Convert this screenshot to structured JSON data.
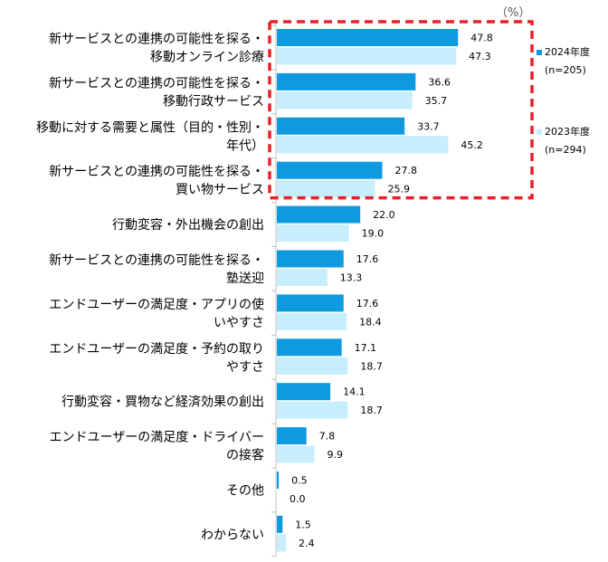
{
  "chart_data": {
    "type": "bar",
    "orientation": "horizontal",
    "unit": "（%）",
    "categories": [
      [
        "新サービスとの連携の可能性を探る・",
        "移動オンライン診療"
      ],
      [
        "新サービスとの連携の可能性を探る・",
        "移動行政サービス"
      ],
      [
        "移動に対する需要と属性（目的・性別・",
        "年代）"
      ],
      [
        "新サービスとの連携の可能性を探る・",
        "買い物サービス"
      ],
      [
        "行動変容・外出機会の創出"
      ],
      [
        "新サービスとの連携の可能性を探る・",
        "塾送迎"
      ],
      [
        "エンドユーザーの満足度・アプリの使",
        "いやすさ"
      ],
      [
        "エンドユーザーの満足度・予約の取り",
        "やすさ"
      ],
      [
        "行動変容・買物など経済効果の創出"
      ],
      [
        "エンドユーザーの満足度・ドライバー",
        "の接客"
      ],
      [
        "その他"
      ],
      [
        "わからない"
      ]
    ],
    "series": [
      {
        "name": "2024年度",
        "sample": "(n=205)",
        "color": "#0F9ADF",
        "values": [
          47.8,
          36.6,
          33.7,
          27.8,
          22.0,
          17.6,
          17.6,
          17.1,
          14.1,
          7.8,
          0.5,
          1.5
        ]
      },
      {
        "name": "2023年度",
        "sample": "(n=294)",
        "color": "#C6EEFD",
        "values": [
          47.3,
          35.7,
          45.2,
          25.9,
          19.0,
          13.3,
          18.4,
          18.7,
          18.7,
          9.9,
          0.0,
          2.4
        ]
      }
    ],
    "xlim": [
      0,
      100
    ],
    "highlight": {
      "first_category": 0,
      "last_category": 3,
      "color": "#E8202A",
      "style": "dashed"
    },
    "legend_position": "right"
  }
}
